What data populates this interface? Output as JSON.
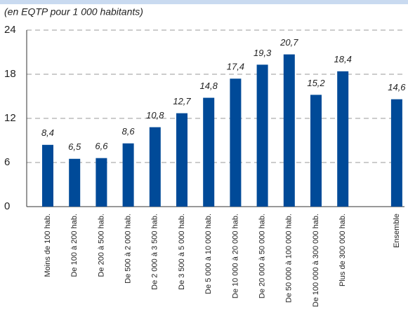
{
  "chart_data": {
    "type": "bar",
    "subtitle": "(en EQTP pour 1 000 habitants)",
    "categories": [
      "Moins de 100 hab.",
      "De 100 à 200 hab.",
      "De 200 à 500 hab.",
      "De 500 à 2 000 hab.",
      "De 2 000 à 3 500 hab.",
      "De 3 500 à 5 000 hab.",
      "De 5 000 à 10 000 hab.",
      "De 10 000 à 20 000 hab.",
      "De 20 000 à 50 000 hab.",
      "De 50 000 à 100 000 hab.",
      "De 100 000 à 300 000 hab.",
      "Plus de 300 000 hab.",
      "Ensemble"
    ],
    "values": [
      8.4,
      6.5,
      6.6,
      8.6,
      10.8,
      12.7,
      14.8,
      17.4,
      19.3,
      20.7,
      15.2,
      18.4,
      14.6
    ],
    "value_labels": [
      "8,4",
      "6,5",
      "6,6",
      "8,6",
      "10,8",
      "12,7",
      "14,8",
      "17,4",
      "19,3",
      "20,7",
      "15,2",
      "18,4",
      "14,6"
    ],
    "color": "#004a98",
    "ylim": [
      0,
      24
    ],
    "yticks": [
      0,
      6,
      12,
      18,
      24
    ],
    "grid": true
  }
}
